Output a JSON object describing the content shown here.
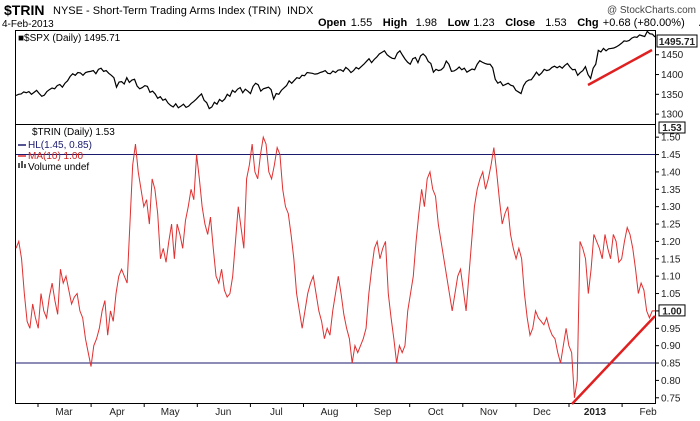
{
  "header": {
    "symbol": "$TRIN",
    "description": "NYSE - Short-Term Trading Arms Index (TRIN)",
    "exchange": "INDX",
    "date": "4-Feb-2013",
    "watermark": "@ StockCharts.com",
    "ohlc": [
      {
        "label": "Open",
        "value": "1.55"
      },
      {
        "label": "High",
        "value": "1.98"
      },
      {
        "label": "Low",
        "value": "1.23"
      },
      {
        "label": "Close",
        "value": "1.53"
      },
      {
        "label": "Chg",
        "value": "+0.68 (+80.00%)"
      }
    ],
    "chg_marker": "▲"
  },
  "spx_panel": {
    "legend": "■$SPX (Daily) 1495.71",
    "last_value_label": "1495.71",
    "y_ticks": [
      1300,
      1350,
      1400,
      1450
    ],
    "y_tick_labels": [
      "1300",
      "1350",
      "1400",
      "1450"
    ],
    "ylim": [
      1275,
      1510
    ],
    "color": "#000000"
  },
  "trin_panel": {
    "legend_title": "$TRIN (Daily) 1.53",
    "legend_hl": "HL(1.45, 0.85)",
    "legend_ma": "MA(10) 1.00",
    "legend_volume": "Volume undef",
    "top_value_label": "1.53",
    "last_value_label": "1.00",
    "y_ticks": [
      0.75,
      0.8,
      0.85,
      0.9,
      0.95,
      1.0,
      1.05,
      1.1,
      1.15,
      1.2,
      1.25,
      1.3,
      1.35,
      1.4,
      1.45,
      1.5
    ],
    "y_tick_labels": [
      "0.75",
      "0.80",
      "0.85",
      "0.90",
      "0.95",
      "1.00",
      "1.05",
      "1.10",
      "1.15",
      "1.20",
      "1.25",
      "1.30",
      "1.35",
      "1.40",
      "1.45",
      "1.50"
    ],
    "ylim": [
      0.735,
      1.535
    ],
    "hline_high": 1.45,
    "hline_low": 0.85,
    "line_color": "#e03030",
    "hline_color": "#1a1a6e"
  },
  "x_axis": {
    "months": [
      {
        "label": "Mar",
        "bold": false
      },
      {
        "label": "Apr",
        "bold": false
      },
      {
        "label": "May",
        "bold": false
      },
      {
        "label": "Jun",
        "bold": false
      },
      {
        "label": "Jul",
        "bold": false
      },
      {
        "label": "Aug",
        "bold": false
      },
      {
        "label": "Sep",
        "bold": false
      },
      {
        "label": "Oct",
        "bold": false
      },
      {
        "label": "Nov",
        "bold": false
      },
      {
        "label": "Dec",
        "bold": false
      },
      {
        "label": "2013",
        "bold": true
      },
      {
        "label": "Feb",
        "bold": false
      }
    ]
  },
  "chart_data": [
    {
      "type": "line",
      "name": "$SPX (Daily)",
      "ylim": [
        1275,
        1510
      ],
      "values": [
        1347,
        1350,
        1351,
        1356,
        1354,
        1357,
        1350,
        1355,
        1360,
        1352,
        1345,
        1348,
        1357,
        1362,
        1366,
        1364,
        1372,
        1375,
        1368,
        1378,
        1384,
        1395,
        1402,
        1398,
        1405,
        1404,
        1398,
        1405,
        1407,
        1408,
        1410,
        1402,
        1413,
        1416,
        1408,
        1410,
        1403,
        1398,
        1392,
        1368,
        1381,
        1382,
        1376,
        1392,
        1380,
        1386,
        1388,
        1371,
        1364,
        1367,
        1372,
        1370,
        1355,
        1358,
        1351,
        1340,
        1344,
        1335,
        1338,
        1328,
        1322,
        1318,
        1326,
        1316,
        1320,
        1325,
        1317,
        1320,
        1327,
        1332,
        1338,
        1345,
        1351,
        1335,
        1329,
        1314,
        1318,
        1330,
        1325,
        1337,
        1332,
        1338,
        1350,
        1345,
        1360,
        1355,
        1363,
        1367,
        1354,
        1363,
        1358,
        1352,
        1370,
        1378,
        1374,
        1358,
        1364,
        1366,
        1368,
        1362,
        1338,
        1352,
        1350,
        1360,
        1366,
        1372,
        1384,
        1378,
        1385,
        1392,
        1390,
        1398,
        1397,
        1405,
        1404,
        1403,
        1401,
        1402,
        1405,
        1407,
        1410,
        1403,
        1402,
        1409,
        1405,
        1411,
        1412,
        1408,
        1418,
        1413,
        1405,
        1410,
        1418,
        1414,
        1420,
        1426,
        1433,
        1440,
        1430,
        1438,
        1444,
        1452,
        1456,
        1460,
        1450,
        1445,
        1441,
        1440,
        1454,
        1460,
        1449,
        1439,
        1431,
        1426,
        1440,
        1443,
        1430,
        1447,
        1452,
        1446,
        1433,
        1428,
        1406,
        1413,
        1410,
        1412,
        1418,
        1434,
        1426,
        1408,
        1409,
        1413,
        1419,
        1412,
        1416,
        1406,
        1410,
        1414,
        1412,
        1426,
        1435,
        1431,
        1428,
        1426,
        1426,
        1417,
        1388,
        1378,
        1382,
        1372,
        1375,
        1378,
        1373,
        1371,
        1360,
        1356,
        1352,
        1372,
        1382,
        1386,
        1387,
        1396,
        1406,
        1398,
        1404,
        1413,
        1410,
        1412,
        1418,
        1421,
        1417,
        1421,
        1416,
        1423,
        1428,
        1419,
        1412,
        1413,
        1398,
        1405,
        1410,
        1420,
        1400,
        1390,
        1416,
        1426,
        1461,
        1457,
        1466,
        1460,
        1465,
        1466,
        1467,
        1470,
        1474,
        1479,
        1485,
        1484,
        1486,
        1492,
        1495,
        1494,
        1500,
        1498,
        1496,
        1509,
        1503,
        1502,
        1495
      ]
    },
    {
      "type": "line",
      "name": "$TRIN (Daily)",
      "ylim": [
        0.735,
        1.535
      ],
      "hlines": [
        1.45,
        0.85
      ],
      "values": [
        1.18,
        1.2,
        1.15,
        1.05,
        0.97,
        0.95,
        1.02,
        0.98,
        0.95,
        1.05,
        1.0,
        0.98,
        1.04,
        1.08,
        1.03,
        0.99,
        1.12,
        1.08,
        1.1,
        1.06,
        1.02,
        1.04,
        1.05,
        1.0,
        0.98,
        0.92,
        0.88,
        0.84,
        0.9,
        0.92,
        0.95,
        1.0,
        1.03,
        0.93,
        1.0,
        0.97,
        1.05,
        1.1,
        1.12,
        1.1,
        1.08,
        1.25,
        1.42,
        1.48,
        1.4,
        1.35,
        1.3,
        1.32,
        1.25,
        1.38,
        1.35,
        1.28,
        1.15,
        1.18,
        1.14,
        1.2,
        1.25,
        1.15,
        1.25,
        1.22,
        1.18,
        1.26,
        1.3,
        1.35,
        1.32,
        1.45,
        1.38,
        1.3,
        1.25,
        1.22,
        1.27,
        1.18,
        1.1,
        1.08,
        1.12,
        1.06,
        1.04,
        1.05,
        1.1,
        1.2,
        1.3,
        1.24,
        1.18,
        1.38,
        1.42,
        1.48,
        1.4,
        1.38,
        1.45,
        1.5,
        1.48,
        1.4,
        1.38,
        1.42,
        1.47,
        1.45,
        1.35,
        1.3,
        1.28,
        1.22,
        1.15,
        1.05,
        1.0,
        0.95,
        1.0,
        1.05,
        1.08,
        1.1,
        1.05,
        1.0,
        0.97,
        0.92,
        0.95,
        0.93,
        1.0,
        1.05,
        1.1,
        1.05,
        0.99,
        0.95,
        0.92,
        0.85,
        0.9,
        0.88,
        0.9,
        0.92,
        0.95,
        1.05,
        1.12,
        1.18,
        1.2,
        1.15,
        1.18,
        1.2,
        1.05,
        0.98,
        0.92,
        0.85,
        0.9,
        0.88,
        0.9,
        1.0,
        1.05,
        1.1,
        1.2,
        1.28,
        1.35,
        1.3,
        1.38,
        1.4,
        1.35,
        1.33,
        1.25,
        1.2,
        1.15,
        1.1,
        1.05,
        1.0,
        1.05,
        1.1,
        1.12,
        1.06,
        1.0,
        1.1,
        1.2,
        1.3,
        1.35,
        1.38,
        1.4,
        1.35,
        1.38,
        1.42,
        1.47,
        1.4,
        1.32,
        1.25,
        1.28,
        1.3,
        1.22,
        1.18,
        1.15,
        1.18,
        1.15,
        1.05,
        0.98,
        0.93,
        0.95,
        1.0,
        0.98,
        0.97,
        0.96,
        0.98,
        0.95,
        0.93,
        0.92,
        0.88,
        0.85,
        0.9,
        0.95,
        0.9,
        0.88,
        0.75,
        0.8,
        1.2,
        1.18,
        1.15,
        1.05,
        1.12,
        1.22,
        1.2,
        1.18,
        1.15,
        1.22,
        1.18,
        1.15,
        1.22,
        1.2,
        1.14,
        1.15,
        1.2,
        1.24,
        1.22,
        1.18,
        1.12,
        1.05,
        1.08,
        1.06,
        1.0,
        0.98,
        1.0,
        1.0
      ]
    }
  ]
}
